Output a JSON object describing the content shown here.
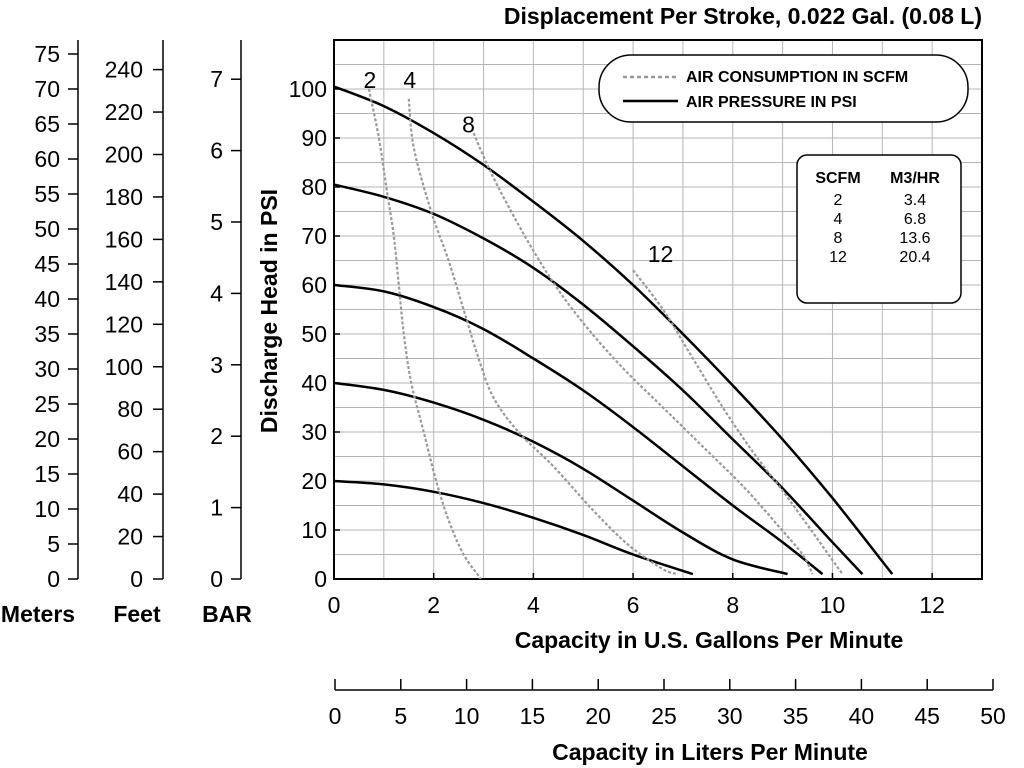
{
  "chart_data": {
    "type": "line",
    "title": "Displacement Per Stroke, 0.022 Gal. (0.08 L)",
    "xlabel": "Capacity in U.S. Gallons Per Minute",
    "ylabel": "Discharge Head in PSI",
    "xlim": [
      0,
      13
    ],
    "ylim": [
      0,
      110
    ],
    "grid": true,
    "x_ticks": [
      0,
      2,
      4,
      6,
      8,
      10,
      12
    ],
    "y_ticks": [
      0,
      10,
      20,
      30,
      40,
      50,
      60,
      70,
      80,
      90,
      100
    ],
    "secondary_x_axis": {
      "label": "Capacity in Liters Per Minute",
      "ticks": [
        0,
        5,
        10,
        15,
        20,
        25,
        30,
        35,
        40,
        45,
        50
      ],
      "lim": [
        0,
        50
      ]
    },
    "extra_y_axes": [
      {
        "label": "Meters",
        "ticks": [
          0,
          5,
          10,
          15,
          20,
          25,
          30,
          35,
          40,
          45,
          50,
          55,
          60,
          65,
          70,
          75
        ]
      },
      {
        "label": "Feet",
        "ticks": [
          0,
          20,
          40,
          60,
          80,
          100,
          120,
          140,
          160,
          180,
          200,
          220,
          240
        ]
      },
      {
        "label": "BAR",
        "ticks": [
          0,
          1,
          2,
          3,
          4,
          5,
          6,
          7
        ]
      }
    ],
    "series": [
      {
        "group": "air_pressure",
        "label": "20",
        "points": [
          [
            0,
            20
          ],
          [
            1,
            19.3
          ],
          [
            2,
            17.8
          ],
          [
            3,
            15.5
          ],
          [
            4,
            12.5
          ],
          [
            5,
            9
          ],
          [
            6,
            5
          ],
          [
            7.2,
            1
          ]
        ]
      },
      {
        "group": "air_pressure",
        "label": "40",
        "points": [
          [
            0,
            40
          ],
          [
            1,
            38.6
          ],
          [
            2,
            36
          ],
          [
            3,
            32.5
          ],
          [
            4,
            28
          ],
          [
            5,
            22.5
          ],
          [
            6,
            16
          ],
          [
            7,
            9.5
          ],
          [
            8,
            4
          ],
          [
            9.1,
            1
          ]
        ]
      },
      {
        "group": "air_pressure",
        "label": "60",
        "points": [
          [
            0,
            60
          ],
          [
            1,
            58.7
          ],
          [
            2,
            55.5
          ],
          [
            3,
            51
          ],
          [
            4,
            45
          ],
          [
            5,
            38.5
          ],
          [
            6,
            31
          ],
          [
            7,
            23
          ],
          [
            8,
            15
          ],
          [
            9,
            7.5
          ],
          [
            9.8,
            1
          ]
        ]
      },
      {
        "group": "air_pressure",
        "label": "80",
        "points": [
          [
            0,
            80.5
          ],
          [
            1,
            78
          ],
          [
            2,
            74.5
          ],
          [
            3,
            69.5
          ],
          [
            4,
            63.5
          ],
          [
            5,
            56
          ],
          [
            6,
            47.5
          ],
          [
            7,
            38.5
          ],
          [
            8,
            28.5
          ],
          [
            9,
            18.5
          ],
          [
            10,
            7.5
          ],
          [
            10.6,
            1
          ]
        ]
      },
      {
        "group": "air_pressure",
        "label": "100",
        "points": [
          [
            0,
            100.5
          ],
          [
            1,
            96.5
          ],
          [
            2,
            91
          ],
          [
            3,
            84.5
          ],
          [
            4,
            77
          ],
          [
            5,
            69
          ],
          [
            6,
            60
          ],
          [
            7,
            50
          ],
          [
            8,
            39.5
          ],
          [
            9,
            28.5
          ],
          [
            10,
            16.5
          ],
          [
            11.2,
            1
          ]
        ]
      },
      {
        "group": "air_consumption",
        "label": "2",
        "points": [
          [
            0.7,
            100
          ],
          [
            0.9,
            90
          ],
          [
            1.05,
            80
          ],
          [
            1.2,
            70
          ],
          [
            1.3,
            60
          ],
          [
            1.4,
            50
          ],
          [
            1.55,
            40
          ],
          [
            1.8,
            30
          ],
          [
            2.05,
            20
          ],
          [
            2.3,
            12
          ],
          [
            2.6,
            5
          ],
          [
            2.95,
            0
          ]
        ]
      },
      {
        "group": "air_consumption",
        "label": "4",
        "points": [
          [
            1.5,
            98
          ],
          [
            1.6,
            88
          ],
          [
            1.95,
            75
          ],
          [
            2.3,
            65
          ],
          [
            2.6,
            55
          ],
          [
            2.9,
            45
          ],
          [
            3.2,
            37
          ],
          [
            3.7,
            30
          ],
          [
            4.4,
            23
          ],
          [
            5.2,
            14
          ],
          [
            5.9,
            7
          ],
          [
            6.6,
            2
          ],
          [
            6.9,
            1
          ]
        ]
      },
      {
        "group": "air_consumption",
        "label": "8",
        "points": [
          [
            2.8,
            91
          ],
          [
            3.1,
            84
          ],
          [
            3.5,
            76
          ],
          [
            4,
            67
          ],
          [
            4.5,
            59
          ],
          [
            5.1,
            51
          ],
          [
            5.8,
            43
          ],
          [
            6.6,
            35
          ],
          [
            7.4,
            27
          ],
          [
            8.2,
            19
          ],
          [
            8.9,
            11
          ],
          [
            9.4,
            5
          ],
          [
            9.6,
            1
          ]
        ]
      },
      {
        "group": "air_consumption",
        "label": "12",
        "points": [
          [
            6,
            63
          ],
          [
            6.6,
            55
          ],
          [
            7.2,
            45
          ],
          [
            7.8,
            35
          ],
          [
            8.4,
            26
          ],
          [
            9,
            18
          ],
          [
            9.5,
            11
          ],
          [
            9.85,
            6
          ],
          [
            10.2,
            1
          ]
        ]
      }
    ],
    "curve_labels": {
      "consumption": [
        "2",
        "4",
        "8",
        "12"
      ]
    },
    "legend": {
      "placement": "top-right",
      "items": [
        {
          "label": "AIR CONSUMPTION IN SCFM",
          "style": "dotted",
          "color": "#999999"
        },
        {
          "label": "AIR PRESSURE IN PSI",
          "style": "solid",
          "color": "#000000"
        }
      ]
    },
    "conversion_table": {
      "headers": [
        "SCFM",
        "M3/HR"
      ],
      "rows": [
        [
          "2",
          "3.4"
        ],
        [
          "4",
          "6.8"
        ],
        [
          "8",
          "13.6"
        ],
        [
          "12",
          "20.4"
        ]
      ]
    },
    "colors": {
      "pressure": "#000000",
      "consumption": "#9a9a9a",
      "grid": "#b5b5b5"
    }
  }
}
